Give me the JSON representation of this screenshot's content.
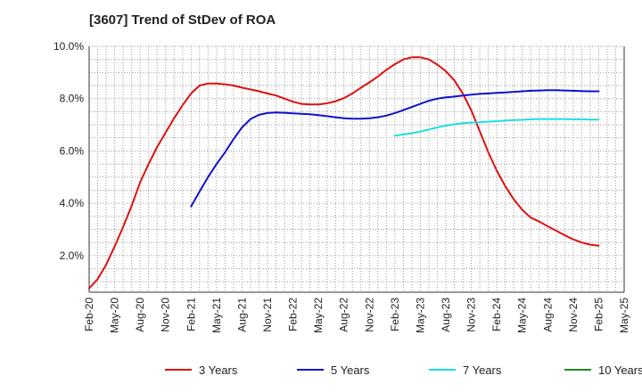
{
  "chart_data": {
    "type": "line",
    "title": "[3607]  Trend of StDev of ROA",
    "xlabel": "",
    "ylabel": "",
    "x_ticks": [
      "Feb-20",
      "May-20",
      "Aug-20",
      "Nov-20",
      "Feb-21",
      "May-21",
      "Aug-21",
      "Nov-21",
      "Feb-22",
      "May-22",
      "Aug-22",
      "Nov-22",
      "Feb-23",
      "May-23",
      "Aug-23",
      "Nov-23",
      "Feb-24",
      "May-24",
      "Aug-24",
      "Nov-24",
      "Feb-25",
      "May-25"
    ],
    "y_ticks": [
      "2.0%",
      "4.0%",
      "6.0%",
      "8.0%",
      "10.0%"
    ],
    "y_tick_values": [
      2,
      4,
      6,
      8,
      10
    ],
    "ylim": [
      0.6,
      10.0
    ],
    "xlim": [
      "Feb-20",
      "May-25"
    ],
    "grid": true,
    "legend_position": "bottom",
    "series": [
      {
        "name": "3 Years",
        "color": "#dd1111",
        "points": [
          [
            "Feb-20",
            0.75
          ],
          [
            "Mar-20",
            1.1
          ],
          [
            "Apr-20",
            1.65
          ],
          [
            "May-20",
            2.35
          ],
          [
            "Jun-20",
            3.1
          ],
          [
            "Jul-20",
            3.9
          ],
          [
            "Aug-20",
            4.8
          ],
          [
            "Sep-20",
            5.5
          ],
          [
            "Oct-20",
            6.15
          ],
          [
            "Nov-20",
            6.7
          ],
          [
            "Dec-20",
            7.25
          ],
          [
            "Jan-21",
            7.75
          ],
          [
            "Feb-21",
            8.2
          ],
          [
            "Mar-21",
            8.5
          ],
          [
            "Apr-21",
            8.58
          ],
          [
            "May-21",
            8.58
          ],
          [
            "Jun-21",
            8.55
          ],
          [
            "Jul-21",
            8.5
          ],
          [
            "Aug-21",
            8.42
          ],
          [
            "Sep-21",
            8.35
          ],
          [
            "Oct-21",
            8.28
          ],
          [
            "Nov-21",
            8.2
          ],
          [
            "Dec-21",
            8.12
          ],
          [
            "Jan-22",
            8.0
          ],
          [
            "Feb-22",
            7.88
          ],
          [
            "Mar-22",
            7.8
          ],
          [
            "Apr-22",
            7.78
          ],
          [
            "May-22",
            7.78
          ],
          [
            "Jun-22",
            7.82
          ],
          [
            "Jul-22",
            7.9
          ],
          [
            "Aug-22",
            8.02
          ],
          [
            "Sep-22",
            8.2
          ],
          [
            "Oct-22",
            8.42
          ],
          [
            "Nov-22",
            8.62
          ],
          [
            "Dec-22",
            8.85
          ],
          [
            "Jan-23",
            9.1
          ],
          [
            "Feb-23",
            9.32
          ],
          [
            "Mar-23",
            9.5
          ],
          [
            "Apr-23",
            9.58
          ],
          [
            "May-23",
            9.58
          ],
          [
            "Jun-23",
            9.5
          ],
          [
            "Jul-23",
            9.3
          ],
          [
            "Aug-23",
            9.05
          ],
          [
            "Sep-23",
            8.7
          ],
          [
            "Oct-23",
            8.2
          ],
          [
            "Nov-23",
            7.55
          ],
          [
            "Dec-23",
            6.75
          ],
          [
            "Jan-24",
            5.95
          ],
          [
            "Feb-24",
            5.25
          ],
          [
            "Mar-24",
            4.65
          ],
          [
            "Apr-24",
            4.15
          ],
          [
            "May-24",
            3.75
          ],
          [
            "Jun-24",
            3.45
          ],
          [
            "Jul-24",
            3.3
          ],
          [
            "Aug-24",
            3.12
          ],
          [
            "Sep-24",
            2.95
          ],
          [
            "Oct-24",
            2.78
          ],
          [
            "Nov-24",
            2.62
          ],
          [
            "Dec-24",
            2.5
          ],
          [
            "Jan-25",
            2.42
          ],
          [
            "Feb-25",
            2.38
          ]
        ]
      },
      {
        "name": "5 Years",
        "color": "#1111cc",
        "points": [
          [
            "Feb-21",
            3.88
          ],
          [
            "Mar-21",
            4.45
          ],
          [
            "Apr-21",
            5.0
          ],
          [
            "May-21",
            5.5
          ],
          [
            "Jun-21",
            5.95
          ],
          [
            "Jul-21",
            6.45
          ],
          [
            "Aug-21",
            6.9
          ],
          [
            "Sep-21",
            7.22
          ],
          [
            "Oct-21",
            7.38
          ],
          [
            "Nov-21",
            7.45
          ],
          [
            "Dec-21",
            7.47
          ],
          [
            "Jan-22",
            7.46
          ],
          [
            "Feb-22",
            7.44
          ],
          [
            "Mar-22",
            7.42
          ],
          [
            "Apr-22",
            7.4
          ],
          [
            "May-22",
            7.37
          ],
          [
            "Jun-22",
            7.33
          ],
          [
            "Jul-22",
            7.29
          ],
          [
            "Aug-22",
            7.25
          ],
          [
            "Sep-22",
            7.23
          ],
          [
            "Oct-22",
            7.23
          ],
          [
            "Nov-22",
            7.25
          ],
          [
            "Dec-22",
            7.29
          ],
          [
            "Jan-23",
            7.35
          ],
          [
            "Feb-23",
            7.45
          ],
          [
            "Mar-23",
            7.56
          ],
          [
            "Apr-23",
            7.68
          ],
          [
            "May-23",
            7.8
          ],
          [
            "Jun-23",
            7.92
          ],
          [
            "Jul-23",
            8.0
          ],
          [
            "Aug-23",
            8.05
          ],
          [
            "Sep-23",
            8.08
          ],
          [
            "Oct-23",
            8.12
          ],
          [
            "Nov-23",
            8.15
          ],
          [
            "Dec-23",
            8.18
          ],
          [
            "Jan-24",
            8.2
          ],
          [
            "Feb-24",
            8.22
          ],
          [
            "Mar-24",
            8.24
          ],
          [
            "Apr-24",
            8.26
          ],
          [
            "May-24",
            8.28
          ],
          [
            "Jun-24",
            8.3
          ],
          [
            "Jul-24",
            8.31
          ],
          [
            "Aug-24",
            8.32
          ],
          [
            "Sep-24",
            8.32
          ],
          [
            "Oct-24",
            8.31
          ],
          [
            "Nov-24",
            8.3
          ],
          [
            "Dec-24",
            8.29
          ],
          [
            "Jan-25",
            8.28
          ],
          [
            "Feb-25",
            8.28
          ]
        ]
      },
      {
        "name": "7 Years",
        "color": "#22dddd",
        "points": [
          [
            "Feb-23",
            6.58
          ],
          [
            "Mar-23",
            6.63
          ],
          [
            "Apr-23",
            6.68
          ],
          [
            "May-23",
            6.74
          ],
          [
            "Jun-23",
            6.82
          ],
          [
            "Jul-23",
            6.9
          ],
          [
            "Aug-23",
            6.97
          ],
          [
            "Sep-23",
            7.02
          ],
          [
            "Oct-23",
            7.06
          ],
          [
            "Nov-23",
            7.08
          ],
          [
            "Dec-23",
            7.1
          ],
          [
            "Jan-24",
            7.12
          ],
          [
            "Feb-24",
            7.14
          ],
          [
            "Mar-24",
            7.16
          ],
          [
            "Apr-24",
            7.18
          ],
          [
            "May-24",
            7.19
          ],
          [
            "Jun-24",
            7.21
          ],
          [
            "Jul-24",
            7.22
          ],
          [
            "Aug-24",
            7.22
          ],
          [
            "Sep-24",
            7.22
          ],
          [
            "Oct-24",
            7.22
          ],
          [
            "Nov-24",
            7.21
          ],
          [
            "Dec-24",
            7.21
          ],
          [
            "Jan-25",
            7.2
          ],
          [
            "Feb-25",
            7.2
          ]
        ]
      },
      {
        "name": "10 Years",
        "color": "#228822",
        "points": []
      }
    ]
  }
}
